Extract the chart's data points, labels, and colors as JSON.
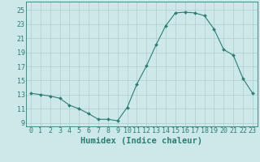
{
  "x": [
    0,
    1,
    2,
    3,
    4,
    5,
    6,
    7,
    8,
    9,
    10,
    11,
    12,
    13,
    14,
    15,
    16,
    17,
    18,
    19,
    20,
    21,
    22,
    23
  ],
  "y": [
    13.2,
    13.0,
    12.8,
    12.5,
    11.5,
    11.0,
    10.3,
    9.5,
    9.5,
    9.3,
    11.2,
    14.5,
    17.1,
    20.1,
    22.8,
    24.6,
    24.7,
    24.6,
    24.2,
    22.3,
    19.4,
    18.6,
    15.3,
    13.2
  ],
  "line_color": "#2e7d72",
  "marker": "D",
  "marker_size": 2.0,
  "bg_color": "#cce8e8",
  "grid_color": "#b0cccc",
  "xlabel": "Humidex (Indice chaleur)",
  "xlim": [
    -0.5,
    23.5
  ],
  "ylim": [
    8.5,
    26.2
  ],
  "yticks": [
    9,
    11,
    13,
    15,
    17,
    19,
    21,
    23,
    25
  ],
  "xticks": [
    0,
    1,
    2,
    3,
    4,
    5,
    6,
    7,
    8,
    9,
    10,
    11,
    12,
    13,
    14,
    15,
    16,
    17,
    18,
    19,
    20,
    21,
    22,
    23
  ],
  "tick_color": "#2e7d72",
  "label_color": "#2e7d72",
  "font_size": 6.0,
  "xlabel_fontsize": 7.5,
  "linewidth": 0.8
}
